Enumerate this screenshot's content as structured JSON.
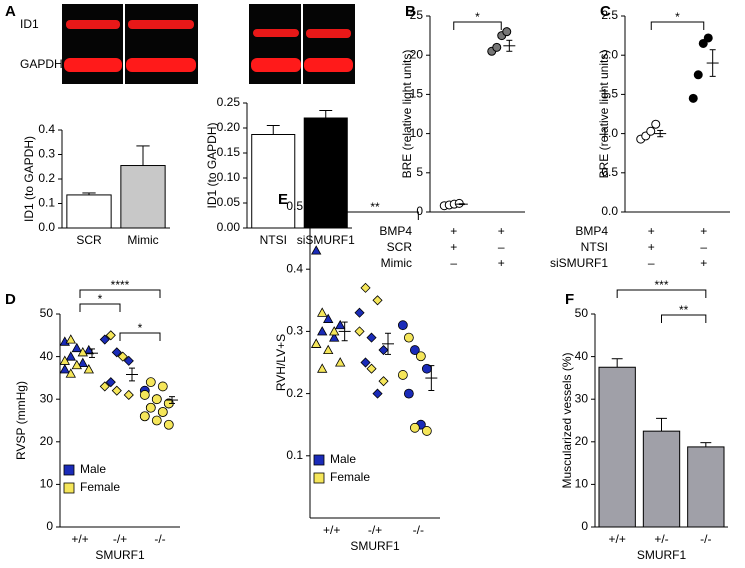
{
  "chart_data": [
    {
      "type": "bar",
      "panel": "A",
      "blot_labels": [
        "ID1",
        "GAPDH"
      ],
      "ylabel": "ID1 (to GAPDH)",
      "categories": [
        "SCR",
        "Mimic"
      ],
      "values": [
        0.135,
        0.255
      ],
      "errors": [
        0.008,
        0.08
      ],
      "colors": [
        "#ffffff",
        "#c8c8c8"
      ],
      "ylim": [
        0,
        0.4
      ],
      "yticks": [
        {
          "value": 0,
          "label": "0.0"
        },
        0.1,
        0.2,
        0.3,
        0.4
      ]
    },
    {
      "type": "bar",
      "ylabel": "ID1 (to GAPDH)",
      "categories": [
        "NTSI",
        "siSMURF1"
      ],
      "values": [
        0.187,
        0.22
      ],
      "errors": [
        0.018,
        0.015
      ],
      "colors": [
        "#ffffff",
        "#000000"
      ],
      "ylim": [
        0,
        0.25
      ],
      "yticks": [
        {
          "value": 0,
          "label": "0.00"
        },
        0.05,
        {
          "value": 0.1,
          "label": "0.10"
        },
        0.15,
        {
          "value": 0.2,
          "label": "0.20"
        },
        0.25
      ]
    },
    {
      "type": "strip",
      "panel": "B",
      "ylabel": "BRE (relative light units)",
      "points": [
        [
          0.8,
          0.9,
          1.0,
          1.1
        ],
        [
          20.5,
          21.0,
          22.5,
          23.0
        ]
      ],
      "point_colors": [
        "#ffffff",
        "#777777"
      ],
      "mean": [
        1.0,
        21.2
      ],
      "sem": [
        0.05,
        0.7
      ],
      "ylim": [
        0,
        25
      ],
      "yticks": [
        0,
        5,
        10,
        15,
        20,
        25
      ],
      "table": {
        "rows": [
          "BMP4",
          "SCR",
          "Mimic"
        ],
        "cells": [
          [
            "+",
            "+"
          ],
          [
            "+",
            "–"
          ],
          [
            "–",
            "+"
          ]
        ]
      },
      "brackets": [
        {
          "groups": [
            0,
            1
          ],
          "label": "*"
        }
      ]
    },
    {
      "type": "strip",
      "panel": "C",
      "ylabel": "BRE (relative light units)",
      "points": [
        [
          0.93,
          0.97,
          1.03,
          1.12
        ],
        [
          1.45,
          1.75,
          2.15,
          2.22
        ]
      ],
      "point_colors": [
        "#ffffff",
        "#000000"
      ],
      "mean": [
        1.0,
        1.9
      ],
      "sem": [
        0.04,
        0.17
      ],
      "ylim": [
        0,
        2.5
      ],
      "yticks": [
        {
          "value": 0,
          "label": "0.0"
        },
        0.5,
        {
          "value": 1,
          "label": "1.0"
        },
        1.5,
        {
          "value": 2,
          "label": "2.0"
        },
        2.5
      ],
      "table": {
        "rows": [
          "BMP4",
          "NTSI",
          "siSMURF1"
        ],
        "cells": [
          [
            "+",
            "+"
          ],
          [
            "+",
            "–"
          ],
          [
            "–",
            "+"
          ]
        ]
      },
      "brackets": [
        {
          "groups": [
            0,
            1
          ],
          "label": "*"
        }
      ]
    },
    {
      "type": "strip",
      "panel": "D",
      "ylabel": "RVSP (mmHg)",
      "xlabel": "SMURF1",
      "categories": [
        "+/+",
        "-/+",
        "-/-"
      ],
      "markers": [
        "triangle",
        "diamond",
        "circle"
      ],
      "series": [
        {
          "name": "Male",
          "color": "#1a2bb8",
          "values": [
            [
              43.5,
              42,
              41.5,
              40,
              38.5,
              37
            ],
            [
              44,
              41,
              39,
              34
            ],
            [
              32,
              30,
              29,
              28,
              27,
              26
            ]
          ]
        },
        {
          "name": "Female",
          "color": "#f5e65a",
          "values": [
            [
              44,
              41,
              39,
              38,
              37,
              36
            ],
            [
              45,
              40,
              33,
              32,
              31
            ],
            [
              34,
              33,
              31,
              30,
              29,
              28,
              27,
              26,
              25,
              24
            ]
          ]
        }
      ],
      "mean": [
        40.8,
        35.8,
        29.8
      ],
      "sem": [
        1.0,
        1.5,
        0.8
      ],
      "ylim": [
        0,
        50
      ],
      "yticks": [
        0,
        10,
        20,
        30,
        40,
        50
      ],
      "brackets": [
        {
          "groups": [
            0,
            1
          ],
          "label": "*"
        },
        {
          "groups": [
            1,
            2
          ],
          "label": "*"
        },
        {
          "groups": [
            0,
            2
          ],
          "label": "****"
        }
      ]
    },
    {
      "type": "strip",
      "panel": "E",
      "ylabel": "RVH/LV+S",
      "xlabel": "SMURF1",
      "categories": [
        "+/+",
        "-/+",
        "-/-"
      ],
      "markers": [
        "triangle",
        "diamond",
        "circle"
      ],
      "series": [
        {
          "name": "Male",
          "color": "#1a2bb8",
          "values": [
            [
              0.43,
              0.32,
              0.31,
              0.3,
              0.29,
              0.28
            ],
            [
              0.33,
              0.29,
              0.27,
              0.25,
              0.2
            ],
            [
              0.31,
              0.27,
              0.24,
              0.2,
              0.15
            ]
          ]
        },
        {
          "name": "Female",
          "color": "#f5e65a",
          "values": [
            [
              0.33,
              0.3,
              0.28,
              0.27,
              0.25,
              0.24
            ],
            [
              0.37,
              0.35,
              0.3,
              0.24,
              0.22
            ],
            [
              0.29,
              0.26,
              0.23,
              0.145,
              0.14
            ]
          ]
        }
      ],
      "mean": [
        0.3,
        0.28,
        0.225
      ],
      "sem": [
        0.015,
        0.017,
        0.02
      ],
      "ylim": [
        0,
        0.5
      ],
      "yticks": [
        0.1,
        0.2,
        0.3,
        0.4,
        0.5
      ],
      "brackets": [
        {
          "groups": [
            0,
            2
          ],
          "label": "**"
        }
      ]
    },
    {
      "type": "bar",
      "panel": "F",
      "ylabel": "Muscularized vessels (%)",
      "xlabel": "SMURF1",
      "categories": [
        "+/+",
        "+/-",
        "-/-"
      ],
      "values": [
        37.5,
        22.5,
        18.8
      ],
      "errors": [
        2.0,
        3.0,
        1.0
      ],
      "colors": [
        "#a0a0a8",
        "#a0a0a8",
        "#a0a0a8"
      ],
      "ylim": [
        0,
        50
      ],
      "yticks": [
        0,
        10,
        20,
        30,
        40,
        50
      ],
      "brackets": [
        {
          "groups": [
            0,
            2
          ],
          "label": "***"
        },
        {
          "groups": [
            1,
            2
          ],
          "label": "**"
        }
      ]
    }
  ]
}
